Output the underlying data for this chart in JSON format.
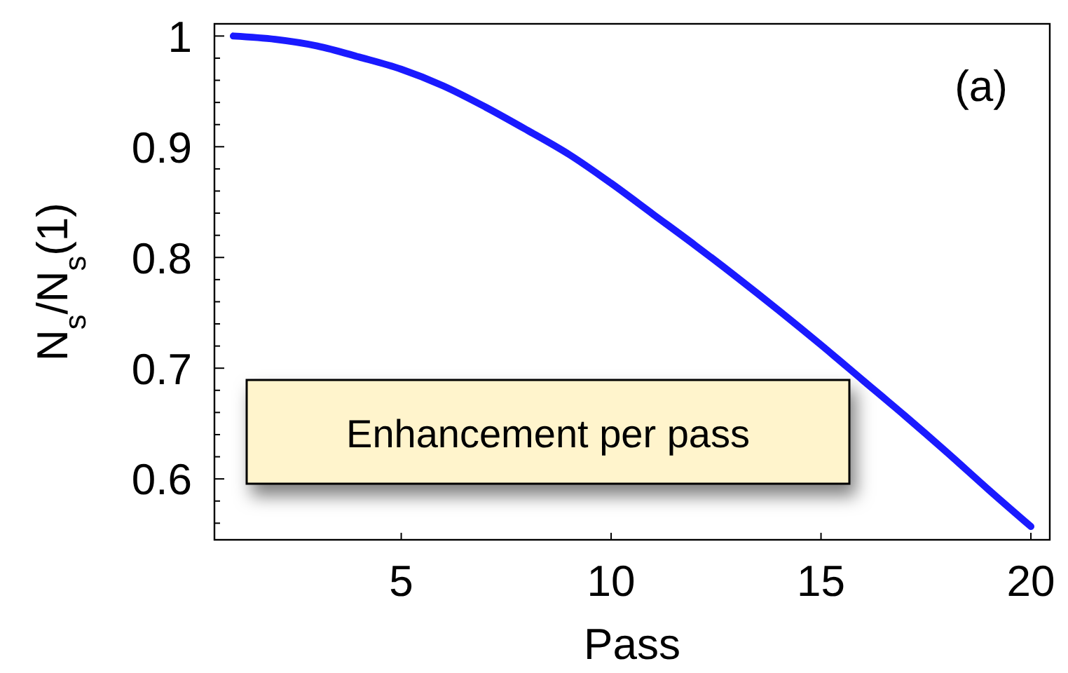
{
  "chart_data": {
    "type": "line",
    "xlabel": "Pass",
    "ylabel": "N$_{s}$/N$_{s}$(1)",
    "annotations": [
      "(a)",
      "Enhancement per pass"
    ],
    "x": [
      1,
      2,
      3,
      4,
      5,
      6,
      7,
      8,
      9,
      10,
      11,
      12,
      13,
      14,
      15,
      16,
      17,
      18,
      19,
      20
    ],
    "series": [
      {
        "color": "#1a1aff",
        "values": [
          1.0,
          0.997,
          0.991,
          0.981,
          0.97,
          0.955,
          0.936,
          0.915,
          0.893,
          0.867,
          0.839,
          0.811,
          0.782,
          0.752,
          0.721,
          0.689,
          0.657,
          0.624,
          0.59,
          0.557
        ]
      }
    ],
    "xlim": [
      0.55,
      20.45
    ],
    "xticks": [
      5,
      10,
      15,
      20
    ],
    "ylim": [
      0.545,
      1.011
    ],
    "yticks": [
      {
        "value": 0.56,
        "label": null
      },
      {
        "value": 0.58,
        "label": null
      },
      0.6,
      {
        "value": 0.62,
        "label": null
      },
      {
        "value": 0.64,
        "label": null
      },
      {
        "value": 0.66,
        "label": null
      },
      {
        "value": 0.68,
        "label": null
      },
      0.7,
      {
        "value": 0.72,
        "label": null
      },
      {
        "value": 0.74,
        "label": null
      },
      {
        "value": 0.76,
        "label": null
      },
      {
        "value": 0.78,
        "label": null
      },
      0.8,
      {
        "value": 0.82,
        "label": null
      },
      {
        "value": 0.84,
        "label": null
      },
      {
        "value": 0.86,
        "label": null
      },
      {
        "value": 0.88,
        "label": null
      },
      0.9,
      {
        "value": 0.92,
        "label": null
      },
      {
        "value": 0.94,
        "label": null
      },
      {
        "value": 0.96,
        "label": null
      },
      {
        "value": 0.98,
        "label": null
      },
      1
    ],
    "grid": false,
    "marker": "none",
    "line_style": "solid"
  }
}
